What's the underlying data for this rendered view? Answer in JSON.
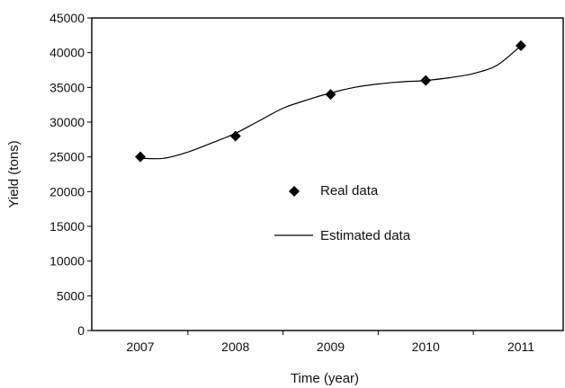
{
  "chart_data": {
    "type": "scatter",
    "title": "",
    "xlabel": "Time (year)",
    "ylabel": "Yield (tons)",
    "categories": [
      "2007",
      "2008",
      "2009",
      "2010",
      "2011"
    ],
    "ylim": [
      0,
      45000
    ],
    "yticks": [
      0,
      5000,
      10000,
      15000,
      20000,
      25000,
      30000,
      35000,
      40000,
      45000
    ],
    "grid": false,
    "legend_position": "center",
    "series": [
      {
        "name": "Real data",
        "kind": "scatter",
        "marker": "diamond",
        "x": [
          "2007",
          "2008",
          "2009",
          "2010",
          "2011"
        ],
        "values": [
          25000,
          28000,
          34000,
          36000,
          41000
        ]
      },
      {
        "name": "Estimated data",
        "kind": "line",
        "x": [
          2007.0,
          2007.25,
          2007.5,
          2007.75,
          2008.0,
          2008.25,
          2008.5,
          2008.75,
          2009.0,
          2009.25,
          2009.5,
          2009.75,
          2010.0,
          2010.25,
          2010.5,
          2010.75,
          2011.0
        ],
        "values": [
          24800,
          24800,
          25700,
          27000,
          28400,
          30200,
          32000,
          33200,
          34200,
          35000,
          35500,
          35800,
          36000,
          36400,
          37000,
          38200,
          41000
        ]
      }
    ]
  }
}
